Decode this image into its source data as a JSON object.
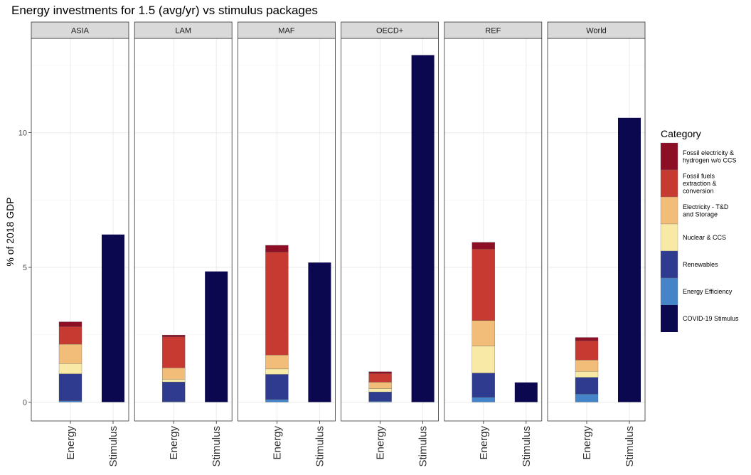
{
  "chart_data": {
    "type": "bar",
    "stacked": true,
    "faceted": true,
    "title": "Energy investments for 1.5 (avg/yr) vs stimulus packages",
    "ylabel": "% of 2018 GDP",
    "xlabel": "",
    "ylim": [
      -0.7,
      13.5
    ],
    "yticks": [
      0,
      5,
      10
    ],
    "grid": true,
    "legend": {
      "title": "Category",
      "position": "right",
      "items": [
        {
          "key": "fossil_elec",
          "label": [
            "Fossil electricity &",
            "hydrogen w/o CCS"
          ],
          "color": "#8c0f26"
        },
        {
          "key": "fossil_fuels",
          "label": [
            "Fossil fuels",
            "extraction &",
            "conversion"
          ],
          "color": "#c63a32"
        },
        {
          "key": "elec_td",
          "label": [
            "Electricity - T&D",
            "and Storage"
          ],
          "color": "#f2bd78"
        },
        {
          "key": "nuclear",
          "label": [
            "Nuclear & CCS"
          ],
          "color": "#f8eaa6"
        },
        {
          "key": "renewables",
          "label": [
            "Renewables"
          ],
          "color": "#2e3b8f"
        },
        {
          "key": "efficiency",
          "label": [
            "Energy Efficiency"
          ],
          "color": "#4584c8"
        },
        {
          "key": "covid",
          "label": [
            "COVID-19 Stimulus"
          ],
          "color": "#0b0850"
        }
      ]
    },
    "categories": [
      "Energy",
      "Stimulus"
    ],
    "stack_order": [
      "efficiency",
      "renewables",
      "nuclear",
      "elec_td",
      "fossil_fuels",
      "fossil_elec"
    ],
    "facets": [
      {
        "name": "ASIA",
        "energy": {
          "efficiency": 0.05,
          "renewables": 1.0,
          "nuclear": 0.38,
          "elec_td": 0.72,
          "fossil_fuels": 0.65,
          "fossil_elec": 0.18
        },
        "stimulus": 6.22
      },
      {
        "name": "LAM",
        "energy": {
          "efficiency": 0.02,
          "renewables": 0.73,
          "nuclear": 0.1,
          "elec_td": 0.42,
          "fossil_fuels": 1.15,
          "fossil_elec": 0.07
        },
        "stimulus": 4.85
      },
      {
        "name": "MAF",
        "energy": {
          "efficiency": 0.1,
          "renewables": 0.93,
          "nuclear": 0.2,
          "elec_td": 0.52,
          "fossil_fuels": 3.82,
          "fossil_elec": 0.25
        },
        "stimulus": 5.18
      },
      {
        "name": "OECD+",
        "energy": {
          "efficiency": 0.03,
          "renewables": 0.35,
          "nuclear": 0.12,
          "elec_td": 0.24,
          "fossil_fuels": 0.32,
          "fossil_elec": 0.07
        },
        "stimulus": 12.88
      },
      {
        "name": "REF",
        "energy": {
          "efficiency": 0.18,
          "renewables": 0.9,
          "nuclear": 1.0,
          "elec_td": 0.95,
          "fossil_fuels": 2.65,
          "fossil_elec": 0.25
        },
        "stimulus": 0.73
      },
      {
        "name": "World",
        "energy": {
          "efficiency": 0.3,
          "renewables": 0.62,
          "nuclear": 0.22,
          "elec_td": 0.42,
          "fossil_fuels": 0.72,
          "fossil_elec": 0.12
        },
        "stimulus": 10.55
      }
    ]
  }
}
